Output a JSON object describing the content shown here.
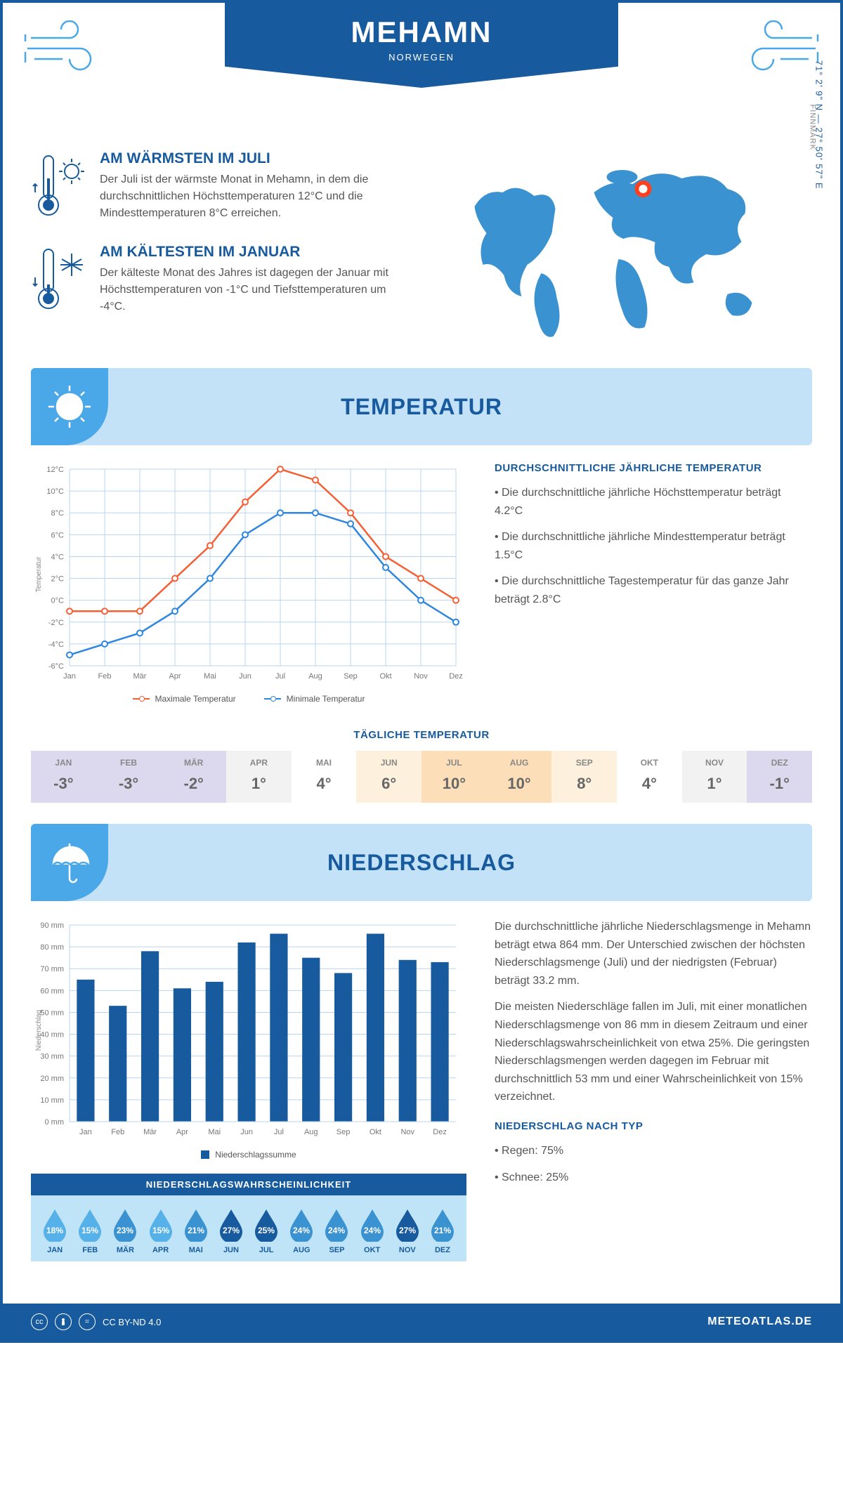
{
  "header": {
    "title": "MEHAMN",
    "country": "NORWEGEN"
  },
  "coords": "71° 2' 9\" N — 27° 50' 57\" E",
  "region": "FINNMARK",
  "warm": {
    "title": "AM WÄRMSTEN IM JULI",
    "text": "Der Juli ist der wärmste Monat in Mehamn, in dem die durchschnittlichen Höchsttemperaturen 12°C und die Mindesttemperaturen 8°C erreichen."
  },
  "cold": {
    "title": "AM KÄLTESTEN IM JANUAR",
    "text": "Der kälteste Monat des Jahres ist dagegen der Januar mit Höchsttemperaturen von -1°C und Tiefsttemperaturen um -4°C."
  },
  "sections": {
    "temperature": "TEMPERATUR",
    "precipitation": "NIEDERSCHLAG"
  },
  "temp_chart": {
    "months": [
      "Jan",
      "Feb",
      "Mär",
      "Apr",
      "Mai",
      "Jun",
      "Jul",
      "Aug",
      "Sep",
      "Okt",
      "Nov",
      "Dez"
    ],
    "max": [
      -1,
      -1,
      -1,
      2,
      5,
      9,
      12,
      11,
      8,
      4,
      2,
      0
    ],
    "min": [
      -5,
      -4,
      -3,
      -1,
      2,
      6,
      8,
      8,
      7,
      3,
      0,
      -2
    ],
    "y_min": -6,
    "y_max": 12,
    "y_step": 2,
    "y_label": "Temperatur",
    "max_color": "#f46036",
    "min_color": "#2e86de",
    "grid_color": "#b8d4f0",
    "legend_max": "Maximale Temperatur",
    "legend_min": "Minimale Temperatur"
  },
  "avg_temp": {
    "title": "DURCHSCHNITTLICHE JÄHRLICHE TEMPERATUR",
    "items": [
      "Die durchschnittliche jährliche Höchsttemperatur beträgt 4.2°C",
      "Die durchschnittliche jährliche Mindesttemperatur beträgt 1.5°C",
      "Die durchschnittliche Tagestemperatur für das ganze Jahr beträgt 2.8°C"
    ]
  },
  "daily_temp": {
    "title": "TÄGLICHE TEMPERATUR",
    "months": [
      "JAN",
      "FEB",
      "MÄR",
      "APR",
      "MAI",
      "JUN",
      "JUL",
      "AUG",
      "SEP",
      "OKT",
      "NOV",
      "DEZ"
    ],
    "values": [
      "-3°",
      "-3°",
      "-2°",
      "1°",
      "4°",
      "6°",
      "10°",
      "10°",
      "8°",
      "4°",
      "1°",
      "-1°"
    ],
    "colors": [
      "#dcd9ee",
      "#dcd9ee",
      "#dcd9ee",
      "#f2f2f2",
      "#ffffff",
      "#fdf0dd",
      "#fcdfb8",
      "#fcdfb8",
      "#fdf0dd",
      "#ffffff",
      "#f2f2f2",
      "#dcd9ee"
    ]
  },
  "precip_chart": {
    "months": [
      "Jan",
      "Feb",
      "Mär",
      "Apr",
      "Mai",
      "Jun",
      "Jul",
      "Aug",
      "Sep",
      "Okt",
      "Nov",
      "Dez"
    ],
    "values": [
      65,
      53,
      78,
      61,
      64,
      82,
      86,
      75,
      68,
      86,
      74,
      73
    ],
    "y_max": 90,
    "y_step": 10,
    "y_suffix": " mm",
    "y_label": "Niederschlag",
    "bar_color": "#175a9e",
    "grid_color": "#b8d4f0",
    "legend": "Niederschlagssumme"
  },
  "precip_text": {
    "p1": "Die durchschnittliche jährliche Niederschlagsmenge in Mehamn beträgt etwa 864 mm. Der Unterschied zwischen der höchsten Niederschlagsmenge (Juli) und der niedrigsten (Februar) beträgt 33.2 mm.",
    "p2": "Die meisten Niederschläge fallen im Juli, mit einer monatlichen Niederschlagsmenge von 86 mm in diesem Zeitraum und einer Niederschlagswahrscheinlichkeit von etwa 25%. Die geringsten Niederschlagsmengen werden dagegen im Februar mit durchschnittlich 53 mm und einer Wahrscheinlichkeit von 15% verzeichnet.",
    "type_title": "NIEDERSCHLAG NACH TYP",
    "types": [
      "Regen: 75%",
      "Schnee: 25%"
    ]
  },
  "prob": {
    "title": "NIEDERSCHLAGSWAHRSCHEINLICHKEIT",
    "months": [
      "JAN",
      "FEB",
      "MÄR",
      "APR",
      "MAI",
      "JUN",
      "JUL",
      "AUG",
      "SEP",
      "OKT",
      "NOV",
      "DEZ"
    ],
    "values": [
      "18%",
      "15%",
      "23%",
      "15%",
      "21%",
      "27%",
      "25%",
      "24%",
      "24%",
      "24%",
      "27%",
      "21%"
    ],
    "colors": [
      "#55b1e8",
      "#55b1e8",
      "#3a92d0",
      "#55b1e8",
      "#3a92d0",
      "#175a9e",
      "#175a9e",
      "#3a92d0",
      "#3a92d0",
      "#3a92d0",
      "#175a9e",
      "#3a92d0"
    ]
  },
  "footer": {
    "license": "CC BY-ND 4.0",
    "site": "METEOATLAS.DE"
  },
  "colors": {
    "primary": "#175a9e",
    "accent": "#4aa8e8",
    "light": "#c3e1f7"
  },
  "map": {
    "marker_color": "#ff4020",
    "land_color": "#3a92d0"
  }
}
